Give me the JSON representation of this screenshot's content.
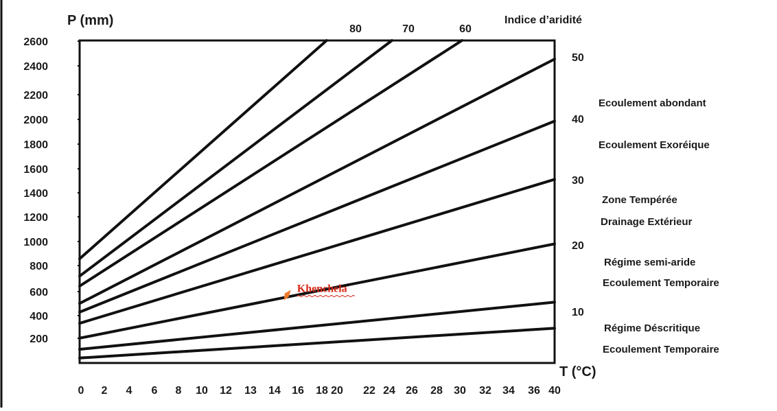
{
  "colors": {
    "line": "#111111",
    "marker": "#f07a2a",
    "marker_label": "#d62818",
    "frame": "#111111"
  },
  "chart_data": {
    "type": "line",
    "title": "",
    "ylabel": "P (mm)",
    "xlabel": "T (°C)",
    "right_axis_label": "Indice d’aridité",
    "x_tick_labels": [
      "0",
      "2",
      "4",
      "6",
      "8",
      "10",
      "12",
      "13",
      "14",
      "16",
      "18",
      "20",
      "22",
      "24",
      "26",
      "28",
      "30",
      "32",
      "34",
      "36",
      "40"
    ],
    "y_tick_labels": [
      "200",
      "400",
      "600",
      "800",
      "1000",
      "1200",
      "1400",
      "1600",
      "1800",
      "2000",
      "2200",
      "2400",
      "2600"
    ],
    "xlim": [
      0,
      40
    ],
    "ylim": [
      0,
      2600
    ],
    "grid": false,
    "right_axis_ticks": [
      "50",
      "40",
      "30",
      "20",
      "10"
    ],
    "top_labels": [
      "80",
      "70",
      "60"
    ],
    "series": [
      {
        "x": [
          0,
          20.8
        ],
        "y": [
          840,
          2600
        ]
      },
      {
        "x": [
          0,
          26.3
        ],
        "y": [
          700,
          2600
        ]
      },
      {
        "x": [
          0,
          32.2
        ],
        "y": [
          620,
          2600
        ]
      },
      {
        "x": [
          0,
          40
        ],
        "y": [
          480,
          2450
        ]
      },
      {
        "x": [
          0,
          40
        ],
        "y": [
          410,
          1950
        ]
      },
      {
        "x": [
          0,
          40
        ],
        "y": [
          320,
          1480
        ]
      },
      {
        "x": [
          0,
          40
        ],
        "y": [
          200,
          960
        ]
      },
      {
        "x": [
          0,
          40
        ],
        "y": [
          110,
          490
        ]
      },
      {
        "x": [
          0,
          40
        ],
        "y": [
          40,
          280
        ]
      }
    ],
    "zones": [
      [
        "Ecoulement abondant"
      ],
      [
        "Ecoulement Exoréique"
      ],
      [
        "Zone Tempérée",
        "Drainage Extérieur"
      ],
      [
        "Régime semi-aride",
        "Ecoulement Temporaire"
      ],
      [
        "Régime Déscritique",
        "Ecoulement Temporaire"
      ]
    ],
    "point": {
      "label": "Khenchela",
      "x": 17.5,
      "y": 550
    }
  }
}
